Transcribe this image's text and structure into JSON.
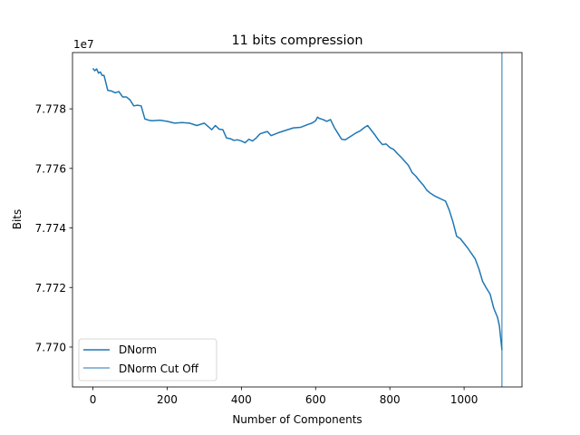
{
  "chart_data": {
    "type": "line",
    "title": "11 bits compression",
    "xlabel": "Number of Components",
    "ylabel": "Bits",
    "offset_text": "1e7",
    "y_scale_factor": 10000000,
    "xlim": [
      -55,
      1156
    ],
    "ylim": [
      77.6866,
      77.7989
    ],
    "x_ticks": [
      0,
      200,
      400,
      600,
      800,
      1000
    ],
    "x_tick_labels": [
      "0",
      "200",
      "400",
      "600",
      "800",
      "1000"
    ],
    "y_ticks": [
      77.7,
      77.72,
      77.74,
      77.76,
      77.78
    ],
    "y_tick_labels": [
      "7.770",
      "7.772",
      "7.774",
      "7.776",
      "7.778"
    ],
    "grid": false,
    "legend_position": "lower-left",
    "colors": {
      "series": "#1f77b4"
    },
    "series": [
      {
        "name": "DNorm",
        "x": [
          0,
          5,
          10,
          15,
          20,
          25,
          30,
          40,
          50,
          60,
          70,
          80,
          90,
          100,
          110,
          120,
          130,
          140,
          150,
          160,
          180,
          200,
          220,
          240,
          260,
          280,
          300,
          320,
          330,
          340,
          350,
          360,
          370,
          380,
          390,
          400,
          410,
          420,
          430,
          440,
          450,
          460,
          470,
          480,
          500,
          520,
          540,
          560,
          580,
          590,
          600,
          605,
          610,
          620,
          630,
          640,
          650,
          660,
          670,
          680,
          690,
          700,
          710,
          720,
          730,
          740,
          750,
          760,
          770,
          780,
          790,
          800,
          810,
          820,
          830,
          840,
          850,
          860,
          870,
          880,
          890,
          900,
          910,
          920,
          930,
          940,
          950,
          960,
          970,
          980,
          990,
          1000,
          1010,
          1020,
          1030,
          1040,
          1050,
          1060,
          1070,
          1080,
          1090,
          1095,
          1100,
          1102
        ],
        "y": [
          77.7936,
          77.7928,
          77.7934,
          77.792,
          77.7924,
          77.7912,
          77.7912,
          77.7862,
          77.786,
          77.7854,
          77.7858,
          77.784,
          77.784,
          77.783,
          77.781,
          77.7812,
          77.781,
          77.7766,
          77.7762,
          77.776,
          77.7762,
          77.7758,
          77.7752,
          77.7754,
          77.7752,
          77.7744,
          77.7752,
          77.773,
          77.7744,
          77.7732,
          77.773,
          77.7702,
          77.77,
          77.7694,
          77.7696,
          77.7692,
          77.7686,
          77.7698,
          77.7692,
          77.7702,
          77.7716,
          77.772,
          77.7724,
          77.771,
          77.772,
          77.7728,
          77.7736,
          77.7738,
          77.7748,
          77.7752,
          77.776,
          77.7772,
          77.7768,
          77.7764,
          77.7758,
          77.7764,
          77.7738,
          77.7718,
          77.7698,
          77.7696,
          77.7704,
          77.7712,
          77.772,
          77.7726,
          77.7736,
          77.7744,
          77.7728,
          77.7712,
          77.7694,
          77.768,
          77.7682,
          77.767,
          77.7664,
          77.765,
          77.7638,
          77.7624,
          77.761,
          77.7586,
          77.7574,
          77.7558,
          77.7544,
          77.7526,
          77.7516,
          77.7508,
          77.7502,
          77.7496,
          77.749,
          77.746,
          77.742,
          77.7372,
          77.7364,
          77.7348,
          77.7332,
          77.7314,
          77.7296,
          77.7262,
          77.722,
          77.7198,
          77.7178,
          77.713,
          77.71,
          77.7072,
          77.7014,
          77.699
        ]
      },
      {
        "name": "DNorm Cut Off",
        "cutoff_x": 1102
      }
    ]
  }
}
